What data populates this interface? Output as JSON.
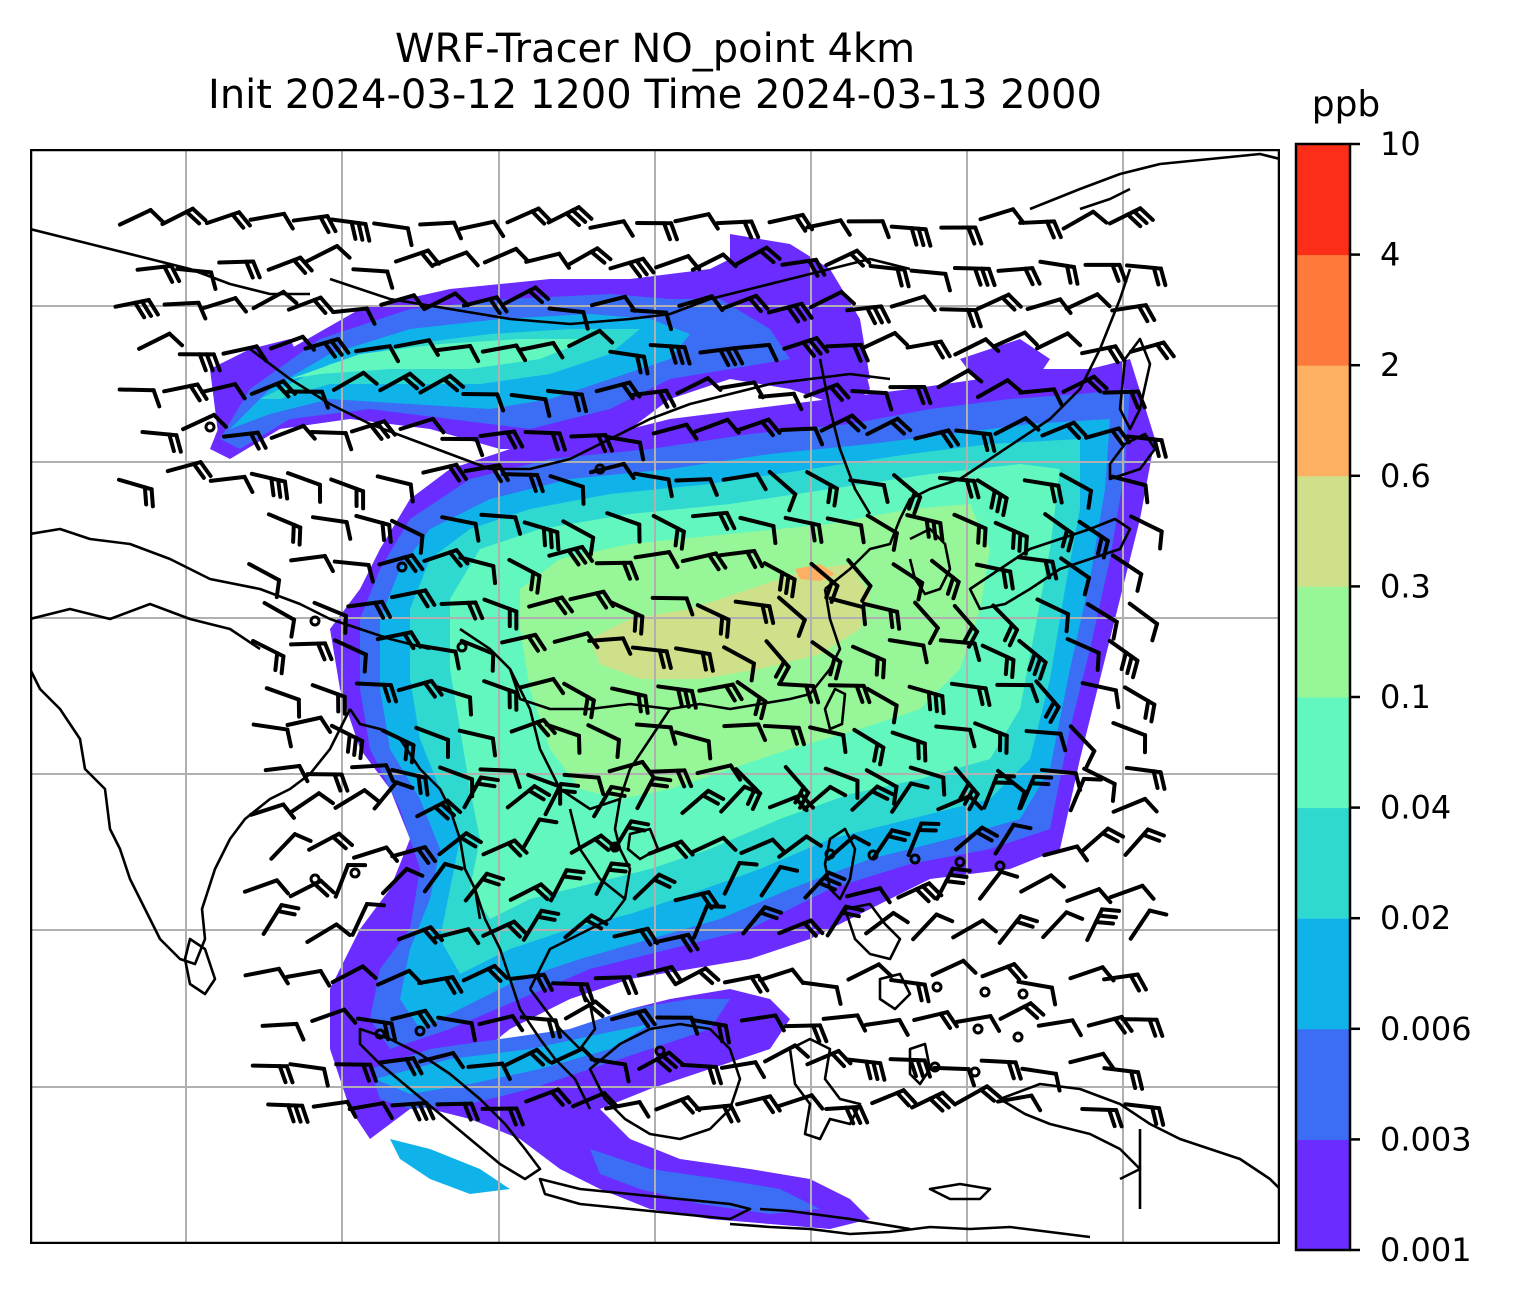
{
  "title": {
    "line1": "WRF-Tracer NO_point 4km",
    "line2": "Init 2024-03-12 1200 Time 2024-03-13 2000"
  },
  "colorbar": {
    "unit_label": "ppb",
    "levels": [
      "0.001",
      "0.003",
      "0.006",
      "0.02",
      "0.04",
      "0.1",
      "0.3",
      "0.6",
      "2",
      "4",
      "10"
    ],
    "colors": [
      "#6a2cff",
      "#3b6ef5",
      "#10b2ea",
      "#2fd9d0",
      "#62f7be",
      "#97f798",
      "#cfe08a",
      "#fdb062",
      "#fd7a3c",
      "#fc2e18"
    ]
  },
  "map": {
    "background": "#ffffff",
    "coastline_color": "#000000",
    "gridline_color": "#b0b0b0",
    "barb_color": "#000000",
    "elements": [
      "coastlines",
      "country-borders",
      "lat-lon-gridlines",
      "tracer-concentration-fill",
      "wind-barbs"
    ]
  }
}
